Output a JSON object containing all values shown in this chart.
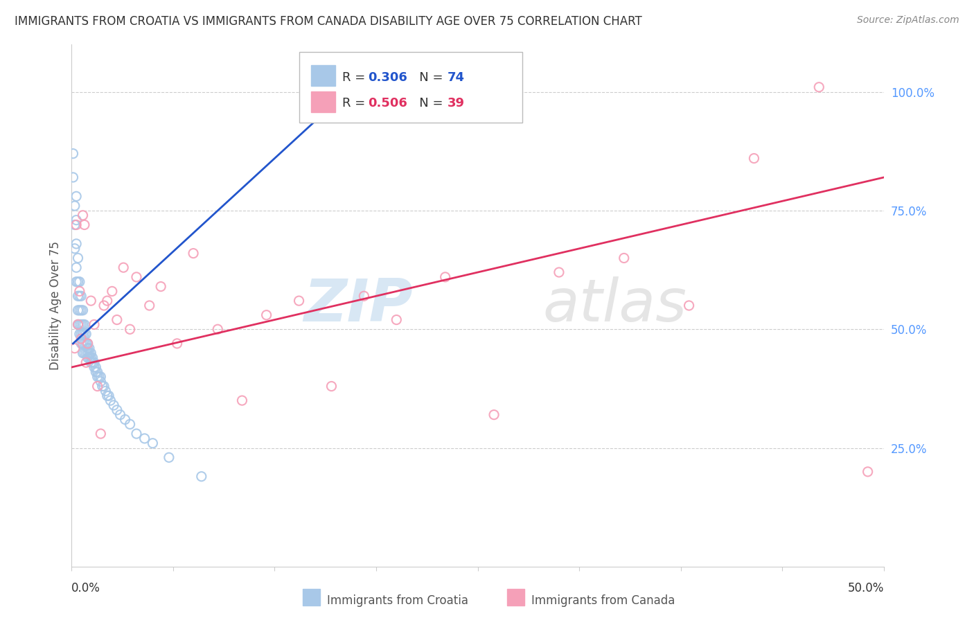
{
  "title": "IMMIGRANTS FROM CROATIA VS IMMIGRANTS FROM CANADA DISABILITY AGE OVER 75 CORRELATION CHART",
  "source": "Source: ZipAtlas.com",
  "ylabel": "Disability Age Over 75",
  "ytick_values": [
    0.25,
    0.5,
    0.75,
    1.0
  ],
  "xlim": [
    0.0,
    0.5
  ],
  "ylim": [
    0.0,
    1.1
  ],
  "croatia_R": 0.306,
  "croatia_N": 74,
  "canada_R": 0.506,
  "canada_N": 39,
  "croatia_color": "#a8c8e8",
  "canada_color": "#f5a0b8",
  "croatia_line_color": "#2255cc",
  "canada_line_color": "#e03060",
  "watermark_color": "#d0e8f8",
  "background_color": "#ffffff",
  "grid_color": "#cccccc",
  "croatia_x": [
    0.001,
    0.001,
    0.002,
    0.002,
    0.002,
    0.003,
    0.003,
    0.003,
    0.003,
    0.003,
    0.004,
    0.004,
    0.004,
    0.004,
    0.004,
    0.005,
    0.005,
    0.005,
    0.005,
    0.005,
    0.006,
    0.006,
    0.006,
    0.006,
    0.006,
    0.007,
    0.007,
    0.007,
    0.007,
    0.007,
    0.008,
    0.008,
    0.008,
    0.008,
    0.009,
    0.009,
    0.009,
    0.01,
    0.01,
    0.01,
    0.01,
    0.011,
    0.011,
    0.011,
    0.012,
    0.012,
    0.012,
    0.013,
    0.013,
    0.014,
    0.014,
    0.015,
    0.015,
    0.016,
    0.016,
    0.017,
    0.018,
    0.018,
    0.019,
    0.02,
    0.021,
    0.022,
    0.023,
    0.024,
    0.026,
    0.028,
    0.03,
    0.033,
    0.036,
    0.04,
    0.045,
    0.05,
    0.06,
    0.08
  ],
  "croatia_y": [
    0.87,
    0.82,
    0.76,
    0.72,
    0.67,
    0.78,
    0.73,
    0.68,
    0.63,
    0.6,
    0.65,
    0.6,
    0.57,
    0.54,
    0.51,
    0.6,
    0.57,
    0.54,
    0.51,
    0.49,
    0.57,
    0.54,
    0.51,
    0.49,
    0.47,
    0.54,
    0.51,
    0.49,
    0.47,
    0.45,
    0.51,
    0.49,
    0.47,
    0.45,
    0.49,
    0.47,
    0.45,
    0.47,
    0.46,
    0.45,
    0.44,
    0.46,
    0.45,
    0.44,
    0.45,
    0.44,
    0.43,
    0.44,
    0.43,
    0.43,
    0.42,
    0.42,
    0.41,
    0.41,
    0.4,
    0.4,
    0.4,
    0.39,
    0.38,
    0.38,
    0.37,
    0.36,
    0.36,
    0.35,
    0.34,
    0.33,
    0.32,
    0.31,
    0.3,
    0.28,
    0.27,
    0.26,
    0.23,
    0.19
  ],
  "canada_x": [
    0.002,
    0.003,
    0.004,
    0.005,
    0.006,
    0.007,
    0.008,
    0.009,
    0.01,
    0.012,
    0.014,
    0.016,
    0.018,
    0.02,
    0.022,
    0.025,
    0.028,
    0.032,
    0.036,
    0.04,
    0.048,
    0.055,
    0.065,
    0.075,
    0.09,
    0.105,
    0.12,
    0.14,
    0.16,
    0.18,
    0.2,
    0.23,
    0.26,
    0.3,
    0.34,
    0.38,
    0.42,
    0.46,
    0.49
  ],
  "canada_y": [
    0.46,
    0.72,
    0.51,
    0.58,
    0.48,
    0.74,
    0.72,
    0.43,
    0.47,
    0.56,
    0.51,
    0.38,
    0.28,
    0.55,
    0.56,
    0.58,
    0.52,
    0.63,
    0.5,
    0.61,
    0.55,
    0.59,
    0.47,
    0.66,
    0.5,
    0.35,
    0.53,
    0.56,
    0.38,
    0.57,
    0.52,
    0.61,
    0.32,
    0.62,
    0.65,
    0.55,
    0.86,
    1.01,
    0.2
  ],
  "croatia_line_x": [
    0.001,
    0.16
  ],
  "croatia_line_y": [
    0.47,
    0.97
  ],
  "canada_line_x": [
    0.0,
    0.5
  ],
  "canada_line_y": [
    0.42,
    0.82
  ]
}
